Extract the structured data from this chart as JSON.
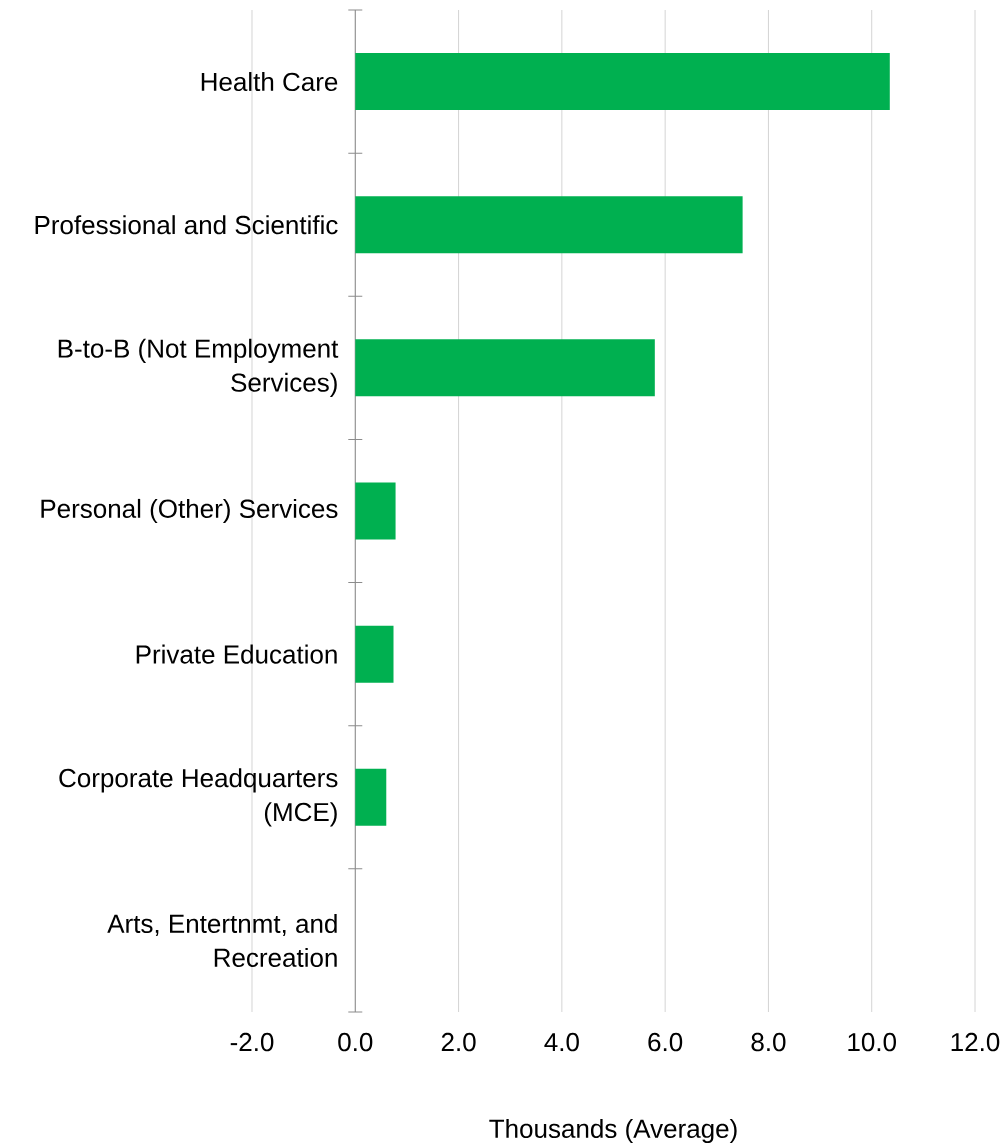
{
  "chart_data": {
    "type": "bar",
    "orientation": "horizontal",
    "categories": [
      "Health Care",
      "Professional and Scientific",
      "B-to-B (Not Employment Services)",
      "Personal (Other) Services",
      "Private Education",
      "Corporate Headquarters (MCE)",
      "Arts, Entertnmt, and Recreation"
    ],
    "values": [
      10.35,
      7.5,
      5.8,
      0.78,
      0.74,
      0.6,
      0
    ],
    "color": "#00b050",
    "xlabel": "Thousands  (Average)",
    "xlim": [
      -2,
      12
    ],
    "xticks": [
      {
        "value": -2,
        "label": "-2.0"
      },
      {
        "value": 0,
        "label": "0.0"
      },
      {
        "value": 2,
        "label": "2.0"
      },
      {
        "value": 4,
        "label": "4.0"
      },
      {
        "value": 6,
        "label": "6.0"
      },
      {
        "value": 8,
        "label": "8.0"
      },
      {
        "value": 10,
        "label": "10.0"
      },
      {
        "value": 12,
        "label": "12.0"
      }
    ],
    "grid": "x"
  }
}
